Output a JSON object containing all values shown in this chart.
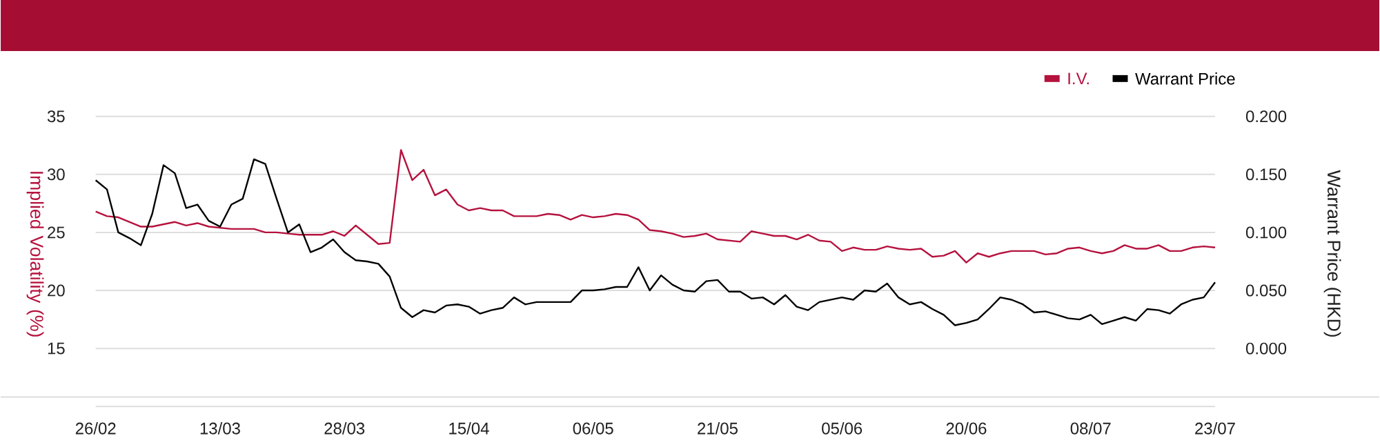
{
  "chart_data": {
    "type": "line",
    "categories": [
      "26/02",
      null,
      null,
      null,
      null,
      null,
      null,
      null,
      null,
      null,
      null,
      "13/03",
      null,
      null,
      null,
      null,
      null,
      null,
      null,
      null,
      null,
      null,
      "28/03",
      null,
      null,
      null,
      null,
      null,
      null,
      null,
      null,
      null,
      null,
      "15/04",
      null,
      null,
      null,
      null,
      null,
      null,
      null,
      null,
      null,
      null,
      "06/05",
      null,
      null,
      null,
      null,
      null,
      null,
      null,
      null,
      null,
      null,
      "21/05",
      null,
      null,
      null,
      null,
      null,
      null,
      null,
      null,
      null,
      null,
      "05/06",
      null,
      null,
      null,
      null,
      null,
      null,
      null,
      null,
      null,
      null,
      "20/06",
      null,
      null,
      null,
      null,
      null,
      null,
      null,
      null,
      null,
      null,
      "08/07",
      null,
      null,
      null,
      null,
      null,
      null,
      null,
      null,
      null,
      null,
      "23/07"
    ],
    "ylabel": "Implied Volatility (%)",
    "y2label": "Warrant Price (HKD)",
    "ylim": [
      10,
      35
    ],
    "yticks": [
      15,
      20,
      25,
      30,
      35
    ],
    "y2lim": [
      -0.05,
      0.2
    ],
    "y2ticks": [
      {
        "value": 0,
        "label": "0.000"
      },
      {
        "value": 0.05,
        "label": "0.050"
      },
      {
        "value": 0.1,
        "label": "0.100"
      },
      {
        "value": 0.15,
        "label": "0.150"
      },
      {
        "value": 0.2,
        "label": "0.200"
      }
    ],
    "grid": "y",
    "legend": "top right",
    "marker": "none",
    "line_style": "solid",
    "series": [
      {
        "name": "I.V.",
        "color": "#b5123e",
        "values": [
          26.8,
          26.4,
          26.3,
          25.9,
          25.5,
          25.5,
          25.7,
          25.9,
          25.6,
          25.8,
          25.5,
          25.4,
          25.3,
          25.3,
          25.3,
          25.0,
          25.0,
          24.9,
          24.8,
          24.8,
          24.8,
          25.1,
          24.7,
          25.6,
          24.8,
          24.0,
          24.1,
          32.1,
          29.5,
          30.4,
          28.2,
          28.7,
          27.4,
          26.9,
          27.1,
          26.9,
          26.9,
          26.4,
          26.4,
          26.4,
          26.6,
          26.5,
          26.1,
          26.5,
          26.3,
          26.4,
          26.6,
          26.5,
          26.1,
          25.2,
          25.1,
          24.9,
          24.6,
          24.7,
          24.9,
          24.4,
          24.3,
          24.2,
          25.1,
          24.9,
          24.7,
          24.7,
          24.4,
          24.8,
          24.3,
          24.2,
          23.4,
          23.7,
          23.5,
          23.5,
          23.8,
          23.6,
          23.5,
          23.6,
          22.9,
          23.0,
          23.4,
          22.4,
          23.2,
          22.9,
          23.2,
          23.4,
          23.4,
          23.4,
          23.1,
          23.2,
          23.6,
          23.7,
          23.4,
          23.2,
          23.4,
          23.9,
          23.6,
          23.6,
          23.9,
          23.4,
          23.4,
          23.7,
          23.8,
          23.7
        ]
      },
      {
        "name": "Warrant Price",
        "color": "#000000",
        "axis": "y2",
        "values": [
          0.145,
          0.137,
          0.1,
          0.095,
          0.089,
          0.116,
          0.158,
          0.151,
          0.121,
          0.124,
          0.11,
          0.105,
          0.124,
          0.129,
          0.163,
          0.159,
          0.129,
          0.1,
          0.107,
          0.083,
          0.087,
          0.094,
          0.083,
          0.076,
          0.075,
          0.073,
          0.062,
          0.035,
          0.027,
          0.033,
          0.031,
          0.037,
          0.038,
          0.036,
          0.03,
          0.033,
          0.035,
          0.044,
          0.038,
          0.04,
          0.04,
          0.04,
          0.04,
          0.05,
          0.05,
          0.051,
          0.053,
          0.053,
          0.07,
          0.05,
          0.063,
          0.055,
          0.05,
          0.049,
          0.058,
          0.059,
          0.049,
          0.049,
          0.043,
          0.044,
          0.038,
          0.046,
          0.036,
          0.033,
          0.04,
          0.042,
          0.044,
          0.042,
          0.05,
          0.049,
          0.056,
          0.044,
          0.038,
          0.04,
          0.034,
          0.029,
          0.02,
          0.022,
          0.025,
          0.034,
          0.044,
          0.042,
          0.038,
          0.031,
          0.032,
          0.029,
          0.026,
          0.025,
          0.029,
          0.021,
          0.024,
          0.027,
          0.024,
          0.034,
          0.033,
          0.03,
          0.038,
          0.042,
          0.044,
          0.057
        ]
      }
    ]
  }
}
